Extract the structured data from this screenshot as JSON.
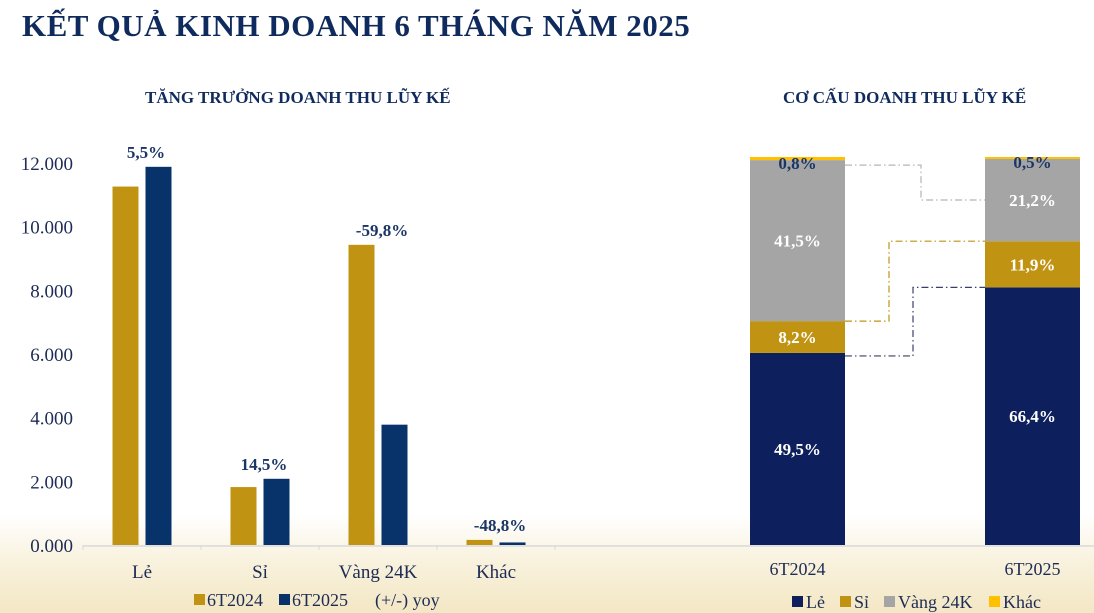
{
  "title": "KẾT QUẢ KINH DOANH 6 THÁNG NĂM 2025",
  "colors": {
    "navy_dark": "#0d1f5c",
    "navy": "#07326a",
    "gold": "#c09412",
    "gray": "#a5a5a5",
    "yellow": "#ffc000",
    "title": "#0f2a5c"
  },
  "chart_data": [
    {
      "type": "bar",
      "title": "TĂNG TRƯỞNG DOANH THU LŨY KẾ",
      "categories": [
        "Lẻ",
        "Sỉ",
        "Vàng 24K",
        "Khác"
      ],
      "series": [
        {
          "name": "6T2024",
          "values": [
            11260,
            1820,
            9430,
            160
          ]
        },
        {
          "name": "6T2025",
          "values": [
            11880,
            2080,
            3780,
            80
          ]
        }
      ],
      "annotations": [
        "5,5%",
        "14,5%",
        "-59,8%",
        "-48,8%"
      ],
      "annotation_legend": "(+/-) yoy",
      "ylim": [
        0,
        12000
      ],
      "yticks": [
        "0.000",
        "2.000",
        "4.000",
        "6.000",
        "8.000",
        "10.000",
        "12.000"
      ],
      "grid": false,
      "legend": "bottom"
    },
    {
      "type": "bar",
      "stacked": true,
      "title": "CƠ CẤU DOANH THU LŨY KẾ",
      "categories": [
        "6T2024",
        "6T2025"
      ],
      "series": [
        {
          "name": "Lẻ",
          "values": [
            49.5,
            66.4
          ],
          "labels": [
            "49,5%",
            "66,4%"
          ]
        },
        {
          "name": "Sỉ",
          "values": [
            8.2,
            11.9
          ],
          "labels": [
            "8,2%",
            "11,9%"
          ]
        },
        {
          "name": "Vàng 24K",
          "values": [
            41.5,
            21.2
          ],
          "labels": [
            "41,5%",
            "21,2%"
          ]
        },
        {
          "name": "Khác",
          "values": [
            0.8,
            0.5
          ],
          "labels": [
            "0,8%",
            "0,5%"
          ]
        }
      ],
      "ylim": [
        0,
        100
      ],
      "legend": "bottom"
    }
  ]
}
